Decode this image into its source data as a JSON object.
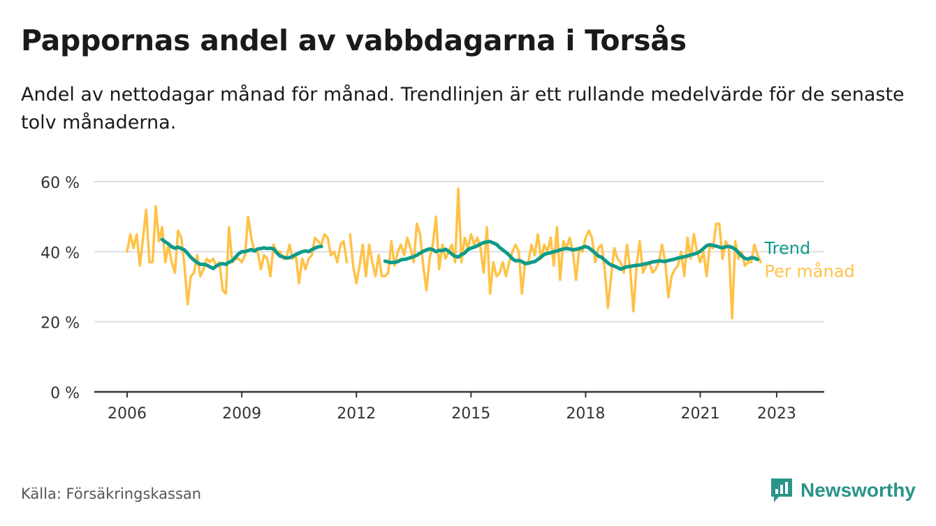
{
  "header": {
    "title": "Pappornas andel av vabbdagarna i Torsås",
    "subtitle": "Andel av nettodagar månad för månad. Trendlinjen är ett rullande medelvärde för de senaste tolv månaderna."
  },
  "footer": {
    "source": "Källa: Försäkringskassan",
    "brand": "Newsworthy",
    "brand_icon": "newsworthy-logo-icon"
  },
  "colors": {
    "monthly": "#FFC247",
    "trend": "#0E9B8A",
    "grid": "#DDDDDD",
    "axis": "#333333",
    "brand": "#2a9488"
  },
  "chart_data": {
    "type": "line",
    "ylim": [
      0,
      60
    ],
    "yticks": [
      0,
      20,
      40,
      60
    ],
    "ytick_labels": [
      "0 %",
      "20 %",
      "40 %",
      "60 %"
    ],
    "xlim": [
      "2006-01",
      "2023-09"
    ],
    "xticks": [
      "2006",
      "2009",
      "2012",
      "2015",
      "2018",
      "2021",
      "2023"
    ],
    "grid": true,
    "legend_placement": "right-end-labels",
    "series": [
      {
        "name": "Per månad",
        "segments": [
          {
            "start": "2006-01",
            "values": [
              40,
              45,
              41,
              45,
              36,
              44,
              52,
              37,
              37,
              53,
              43,
              47,
              37,
              42,
              37,
              34,
              46,
              44,
              36,
              25,
              33,
              34,
              39,
              33,
              35,
              38,
              37,
              38,
              36,
              37,
              29,
              28,
              47,
              37,
              38,
              38,
              37,
              39,
              50,
              44,
              40,
              40,
              35,
              39,
              38,
              33,
              42,
              40,
              40,
              38,
              38,
              42,
              38,
              39,
              31,
              38,
              35,
              38,
              39,
              44,
              43,
              42,
              45,
              44,
              39,
              40,
              37,
              42,
              43,
              37
            ]
          },
          {
            "start": "2011-11",
            "values": [
              45,
              36,
              31,
              36,
              42,
              33,
              42,
              37,
              33,
              39,
              33,
              33,
              34,
              43,
              36,
              40,
              42,
              39,
              44,
              41,
              37,
              48,
              45,
              36,
              29,
              38,
              42,
              50,
              35,
              42,
              38,
              40,
              42,
              37,
              58,
              37,
              44,
              41,
              45,
              42,
              44,
              41,
              34,
              47,
              28,
              37,
              33,
              34,
              37,
              33,
              37,
              40,
              42,
              40,
              28,
              37,
              37,
              42,
              39,
              45,
              38,
              42,
              40,
              44,
              36,
              47,
              32,
              43,
              41,
              44,
              40,
              32,
              41,
              40,
              44,
              46,
              44,
              37,
              41,
              42,
              35,
              24,
              33,
              41,
              38,
              37,
              34,
              42,
              35,
              23,
              36,
              43,
              34,
              36,
              37,
              34,
              35,
              37,
              42,
              37,
              27,
              33,
              35,
              36,
              40,
              33,
              44,
              38,
              45,
              40,
              37,
              40,
              33,
              42,
              41,
              48,
              48,
              38,
              43,
              41,
              21,
              43,
              38,
              40,
              36,
              37,
              37,
              42,
              39,
              37
            ]
          }
        ]
      },
      {
        "name": "Trend",
        "segments": [
          {
            "start": "2006-12",
            "values": [
              43.5,
              42.8,
              42.2,
              41.4,
              41.0,
              41.3,
              40.9,
              40.5,
              39.5,
              38.4,
              37.6,
              36.9,
              36.4,
              36.4,
              36.2,
              35.7,
              35.2,
              35.9,
              36.4,
              36.6,
              36.4,
              37.0,
              37.4,
              38.4,
              39.4,
              40.0,
              40.0,
              40.3,
              40.6,
              40.2,
              40.8,
              40.9,
              41.1,
              40.9,
              41.0,
              40.8,
              39.7,
              38.8,
              38.5,
              38.2,
              38.3,
              38.7,
              39.2,
              39.6,
              40.0,
              40.2,
              40.0,
              40.6,
              41.0,
              41.4,
              41.5
            ]
          },
          {
            "start": "2012-10",
            "values": [
              37.3,
              37.1,
              36.9,
              37.0,
              37.2,
              37.7,
              37.8,
              38.0,
              38.3,
              38.6,
              39.0,
              39.6,
              40.1,
              40.5,
              40.8,
              40.6,
              40.0,
              40.4,
              40.3,
              40.7,
              40.1,
              39.3,
              38.7,
              38.5,
              39.2,
              39.6,
              40.6,
              41.0,
              41.3,
              41.7,
              42.2,
              42.6,
              42.8,
              42.9,
              42.5,
              42.1,
              41.2,
              40.5,
              39.8,
              39.0,
              38.0,
              37.4,
              37.5,
              37.2,
              36.6,
              36.7,
              37.0,
              37.2,
              37.8,
              38.5,
              39.2,
              39.5,
              39.7,
              40.0,
              40.2,
              40.5,
              40.8,
              40.9,
              40.8,
              40.5,
              40.7,
              40.9,
              41.2,
              41.5,
              41.1,
              40.4,
              39.6,
              38.8,
              38.4,
              37.6,
              36.8,
              36.2,
              35.9,
              35.5,
              35.0,
              35.4,
              35.7,
              35.8,
              36.0,
              36.1,
              36.2,
              36.4,
              36.6,
              36.8,
              37.1,
              37.2,
              37.4,
              37.3,
              37.2,
              37.5,
              37.7,
              37.9,
              38.2,
              38.4,
              38.6,
              38.8,
              39.1,
              39.3,
              39.6,
              40.1,
              40.9,
              41.7,
              42.0,
              41.8,
              41.6,
              41.3,
              41.1,
              41.4,
              41.5,
              41.2,
              40.7,
              39.8,
              38.8,
              38.1,
              37.9,
              38.3,
              38.2,
              37.8
            ]
          }
        ]
      }
    ]
  }
}
